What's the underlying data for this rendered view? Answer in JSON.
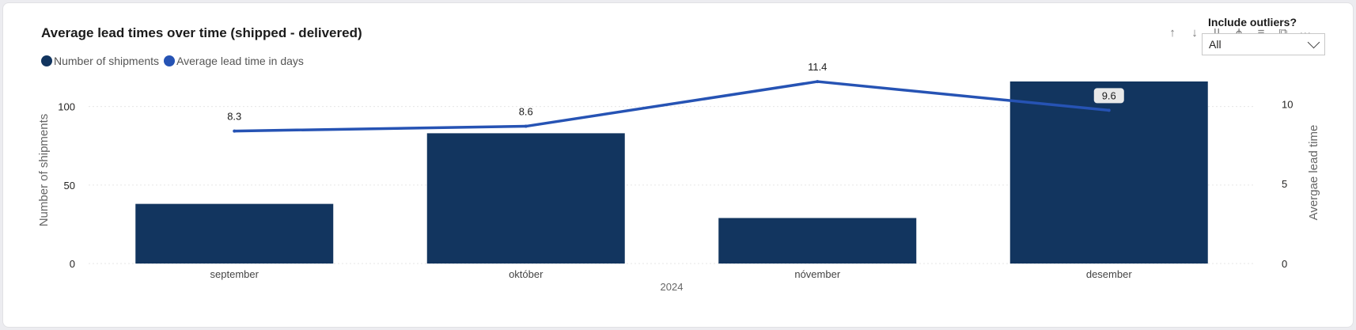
{
  "title": "Average lead times over time (shipped - delivered)",
  "legend": [
    {
      "label": "Number of shipments",
      "color": "#12355f"
    },
    {
      "label": "Average lead time in days",
      "color": "#2653b4"
    }
  ],
  "slicer": {
    "title": "Include outliers?",
    "value": "All"
  },
  "toolbar_icons": [
    "arrow-up-icon",
    "arrow-down-icon",
    "double-arrow-down-icon",
    "expand-hierarchy-icon",
    "filter-icon",
    "focus-mode-icon",
    "more-options-icon"
  ],
  "chart_data": {
    "type": "bar+line",
    "categories": [
      "september",
      "október",
      "nóvember",
      "desember"
    ],
    "x_group_label": "2024",
    "series": [
      {
        "name": "Number of shipments",
        "type": "bar",
        "axis": "left",
        "color": "#12355f",
        "values": [
          38,
          83,
          29,
          116
        ]
      },
      {
        "name": "Average lead time in days",
        "type": "line",
        "axis": "right",
        "color": "#2653b4",
        "values": [
          8.3,
          8.6,
          11.4,
          9.6
        ],
        "labels": [
          "8.3",
          "8.6",
          "11.4",
          "9.6"
        ]
      }
    ],
    "y_left": {
      "label": "Number of shipments",
      "ticks": [
        0,
        50,
        100
      ],
      "range": [
        0,
        120
      ]
    },
    "y_right": {
      "label": "Avergae lead time",
      "ticks": [
        0,
        5,
        10
      ],
      "range": [
        0,
        11.8
      ]
    },
    "grid": true
  }
}
